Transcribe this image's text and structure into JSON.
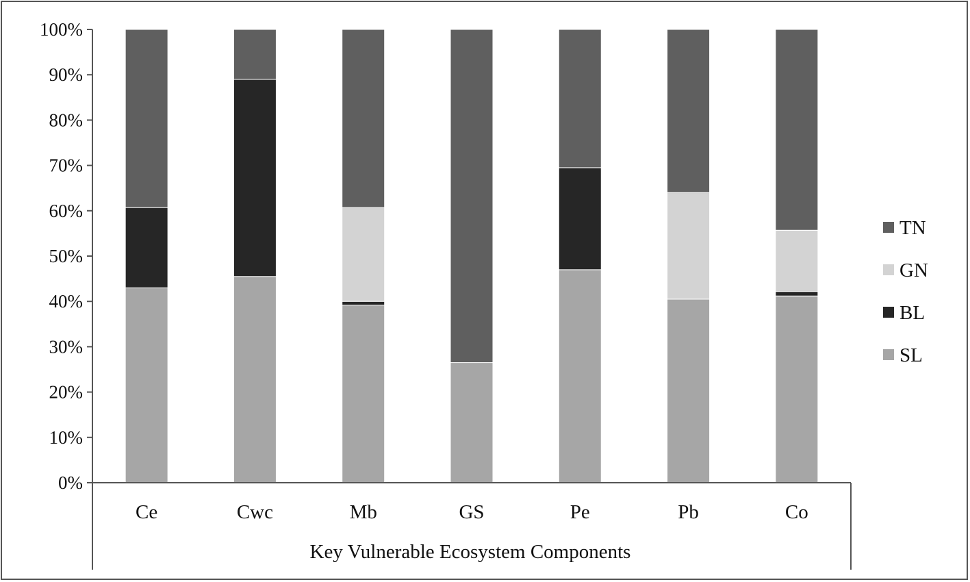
{
  "chart_data": {
    "type": "bar",
    "stacked": true,
    "categories": [
      "Ce",
      "Cwc",
      "Mb",
      "GS",
      "Pe",
      "Pb",
      "Co"
    ],
    "series": [
      {
        "name": "SL",
        "color": "#a6a6a6",
        "values": [
          43,
          45.5,
          39.2,
          26.5,
          47,
          40.5,
          41.2
        ]
      },
      {
        "name": "BL",
        "color": "#262626",
        "values": [
          17.7,
          43.5,
          0.8,
          0,
          22.5,
          0,
          1
        ]
      },
      {
        "name": "GN",
        "color": "#d3d3d3",
        "values": [
          0,
          0,
          20.7,
          0,
          0,
          23.5,
          13.5
        ]
      },
      {
        "name": "TN",
        "color": "#5f5f5f",
        "values": [
          39.3,
          11,
          39.3,
          73.5,
          30.5,
          36,
          44.3
        ]
      }
    ],
    "legend_order": [
      "TN",
      "GN",
      "BL",
      "SL"
    ],
    "legend_placement": "right",
    "xlabel": "Key Vulnerable Ecosystem Components",
    "ylim": [
      0,
      100
    ],
    "yticks": [
      "0%",
      "10%",
      "20%",
      "30%",
      "40%",
      "50%",
      "60%",
      "70%",
      "80%",
      "90%",
      "100%"
    ],
    "grid": false
  }
}
